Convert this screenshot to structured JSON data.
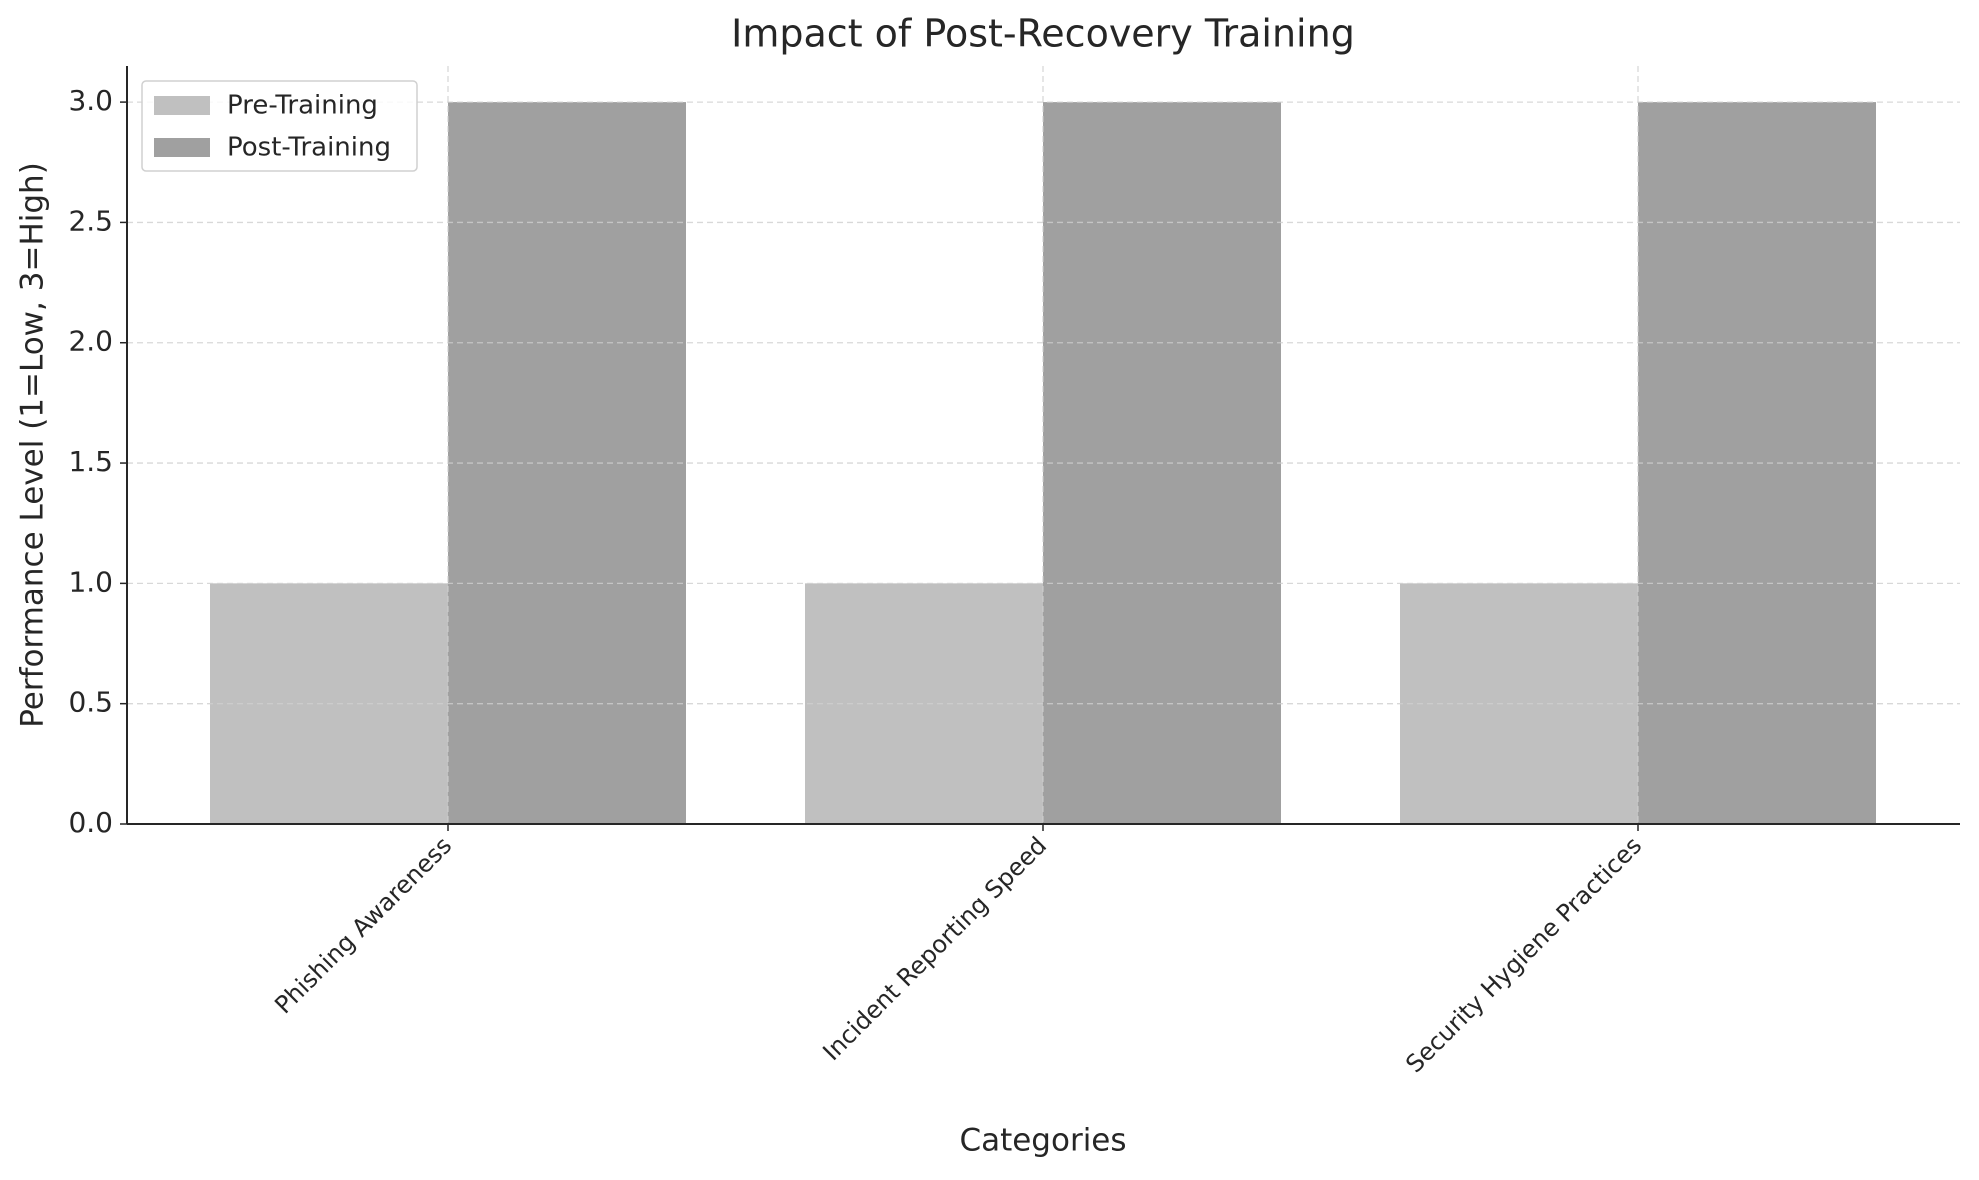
{
  "chart_data": {
    "type": "bar",
    "title": "Impact of Post-Recovery Training",
    "x_label": "Categories",
    "y_label": "Performance Level (1=Low, 3=High)",
    "categories": [
      "Phishing Awareness",
      "Incident Reporting Speed",
      "Security Hygiene Practices"
    ],
    "series": [
      {
        "name": "Pre-Training",
        "color": "#c0c0c0",
        "values": [
          1,
          1,
          1
        ]
      },
      {
        "name": "Post-Training",
        "color": "#a0a0a0",
        "values": [
          3,
          3,
          3
        ]
      }
    ],
    "ylim": [
      0,
      3.15
    ],
    "yticks": [
      {
        "value": 0,
        "label": "0.0"
      },
      {
        "value": 0.5,
        "label": "0.5"
      },
      {
        "value": 1,
        "label": "1.0"
      },
      {
        "value": 1.5,
        "label": "1.5"
      },
      {
        "value": 2,
        "label": "2.0"
      },
      {
        "value": 2.5,
        "label": "2.5"
      },
      {
        "value": 3,
        "label": "3.0"
      }
    ],
    "grid": true,
    "legend": "upper left"
  }
}
